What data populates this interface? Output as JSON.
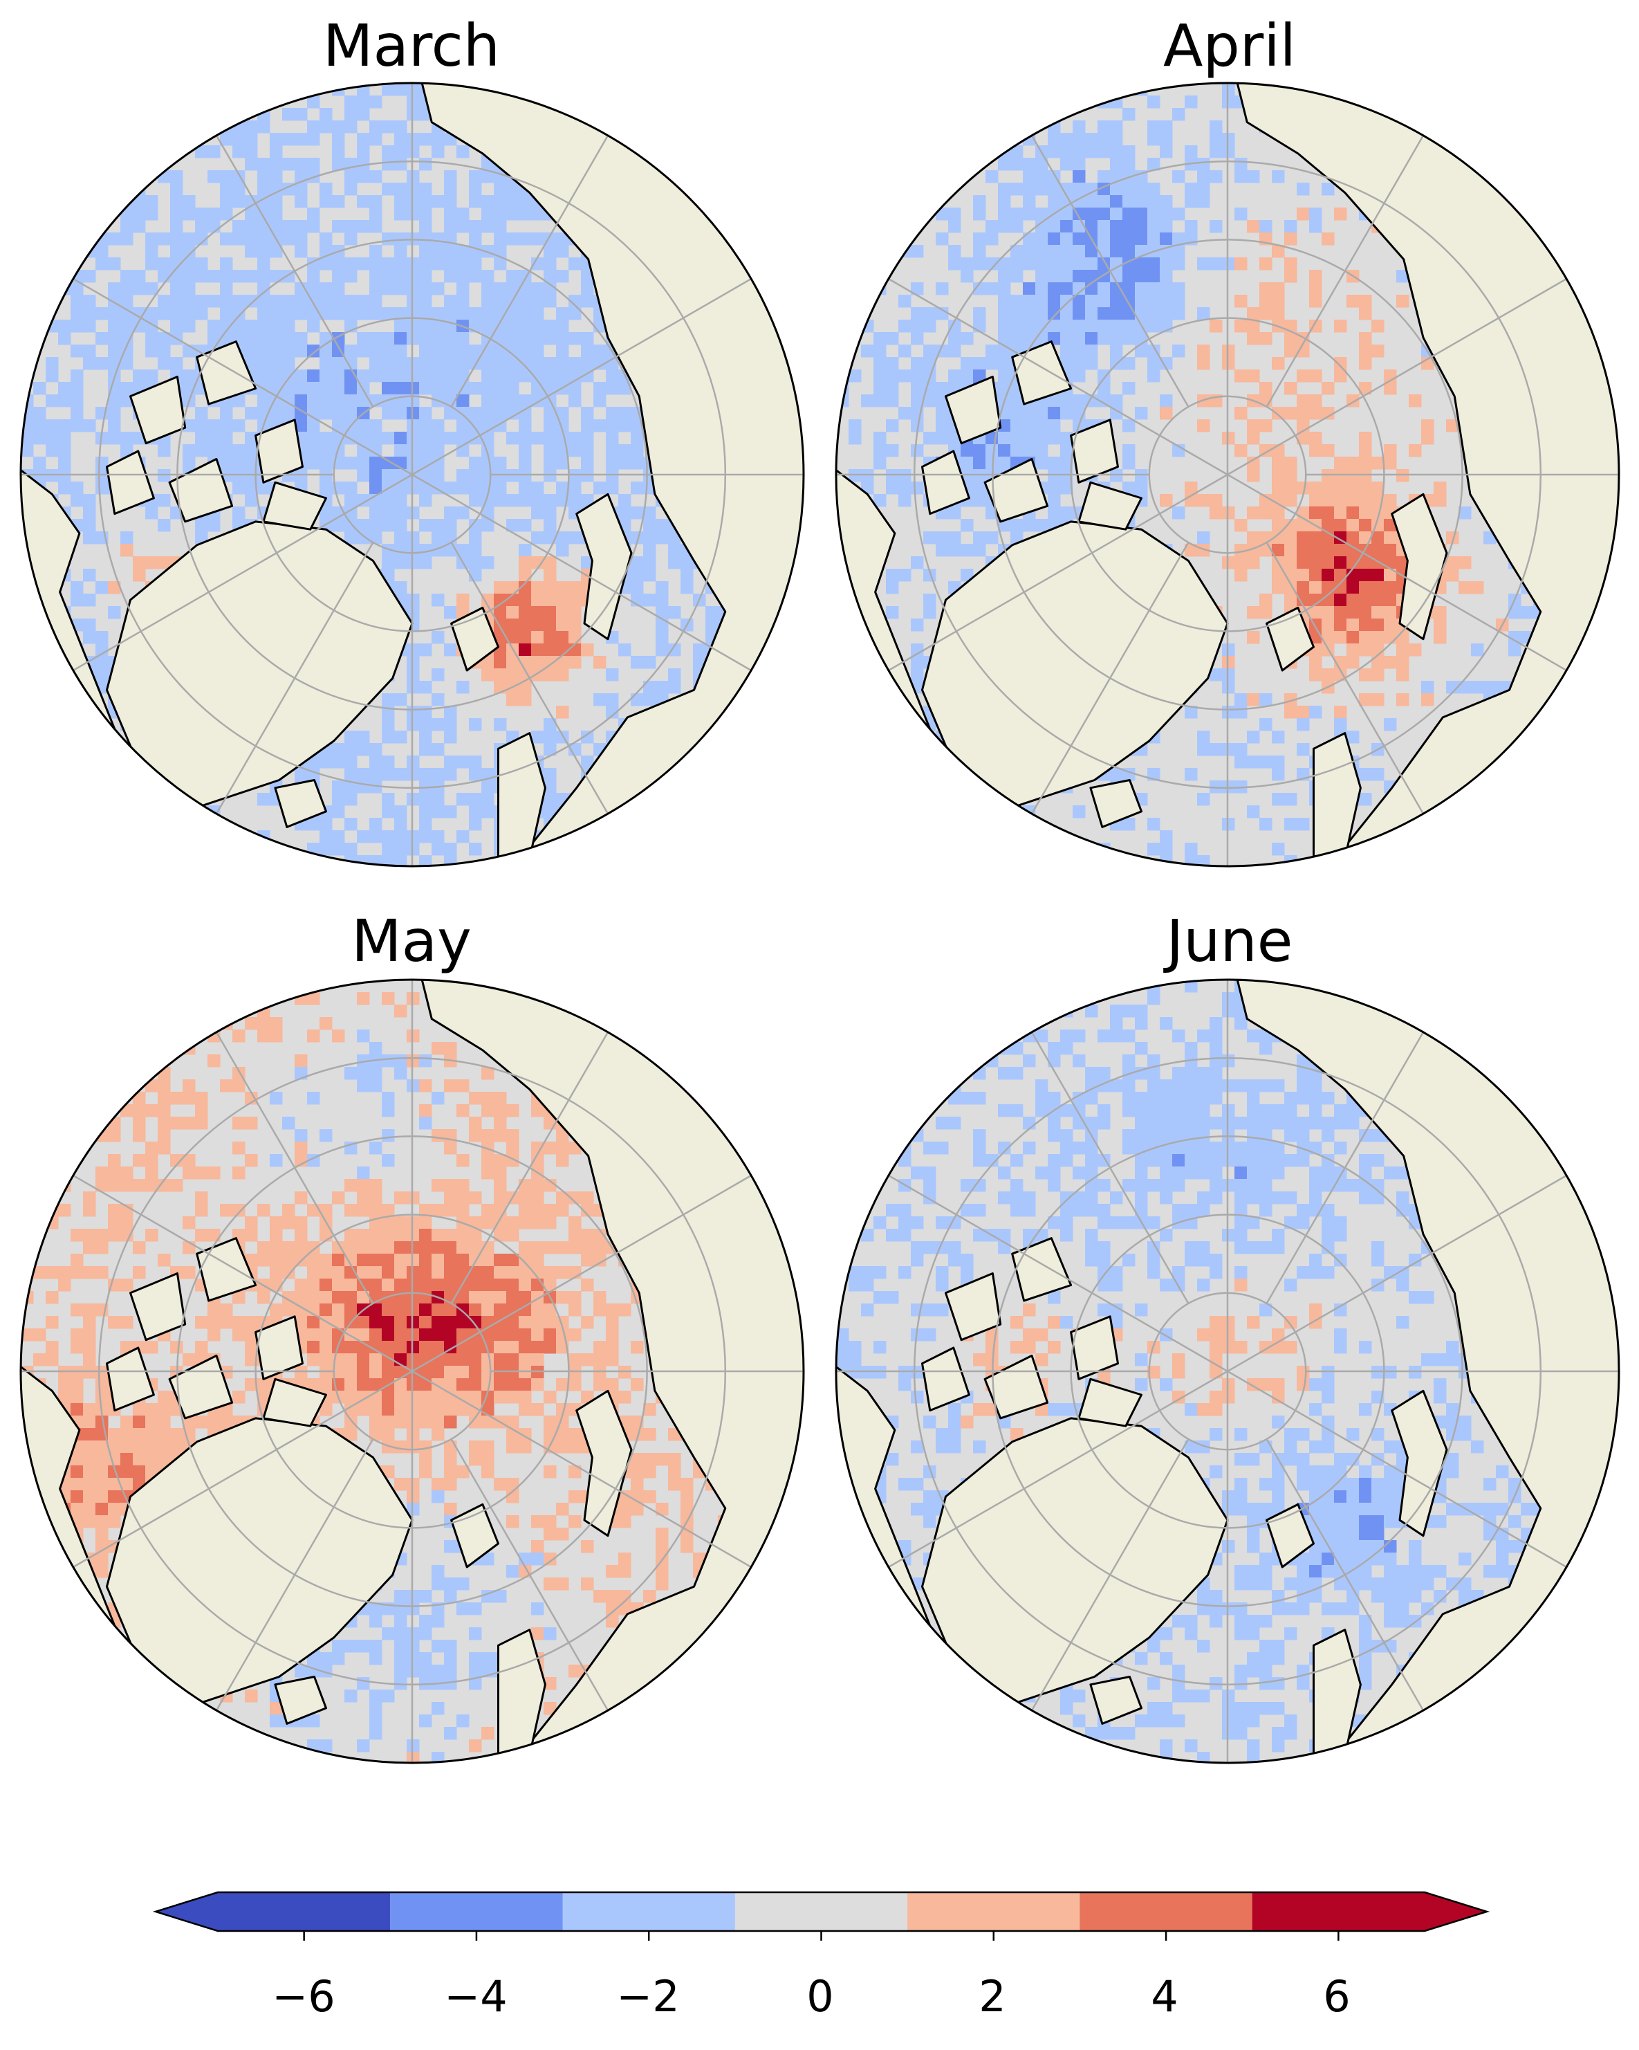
{
  "panels": [
    {
      "title": "March",
      "cx": 0,
      "cy": 0
    },
    {
      "title": "April"
    },
    {
      "title": "May"
    },
    {
      "title": "June"
    }
  ],
  "colorbar": {
    "colors": [
      "#3b4cc0",
      "#7093f3",
      "#aac7fd",
      "#dddddd",
      "#f7b89c",
      "#e7745b",
      "#b40426"
    ],
    "ticks": [
      "−6",
      "−4",
      "−2",
      "0",
      "2",
      "4",
      "6"
    ],
    "extend": "both"
  },
  "colors": {
    "land": "#efeedd",
    "coast": "#000000",
    "grid": "#aaaaaa"
  }
}
